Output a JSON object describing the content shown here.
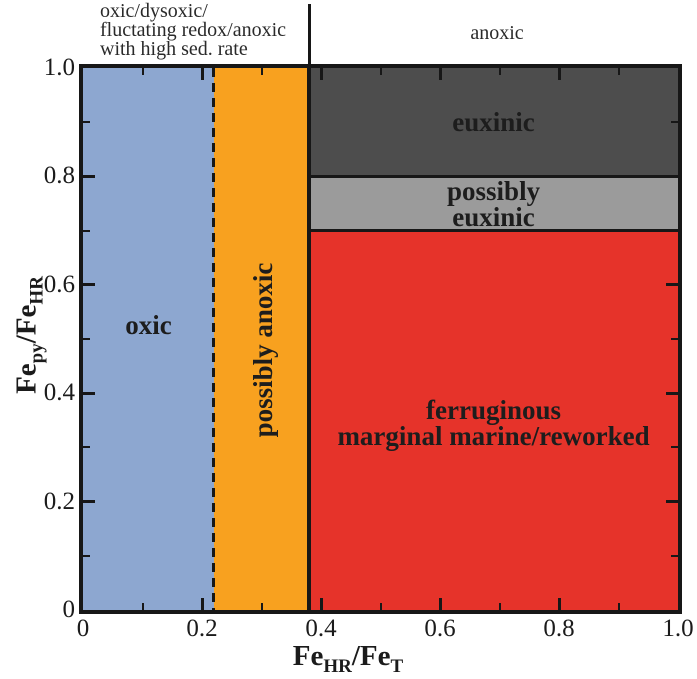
{
  "figure": {
    "name": "iron-speciation-redox-diagram",
    "background": "#ffffff",
    "ink_color": "#171717"
  },
  "annotations": {
    "top_left_lines": [
      "oxic/dysoxic/",
      "fluctating redox/anoxic",
      "with high sed. rate"
    ],
    "top_right_label": "anoxic",
    "separator_x": 0.38
  },
  "chart_data": {
    "type": "area",
    "title": "",
    "x_axis": {
      "label_segments": [
        {
          "t": "Fe"
        },
        {
          "t": "HR",
          "sub": true
        },
        {
          "t": "/Fe"
        },
        {
          "t": "T",
          "sub": true
        }
      ],
      "range": [
        0,
        1
      ],
      "tick_values": [
        0,
        0.2,
        0.4,
        0.6,
        0.8,
        1.0
      ],
      "tick_labels": [
        "0",
        "0.2",
        "0.4",
        "0.6",
        "0.8",
        "1.0"
      ],
      "minor_tick_values": [
        0.1,
        0.3,
        0.5,
        0.7,
        0.9
      ]
    },
    "y_axis": {
      "label_segments": [
        {
          "t": "Fe"
        },
        {
          "t": "py",
          "sub": true
        },
        {
          "t": "/Fe"
        },
        {
          "t": "HR",
          "sub": true
        }
      ],
      "range": [
        0,
        1
      ],
      "tick_values": [
        0,
        0.2,
        0.4,
        0.6,
        0.8,
        1.0
      ],
      "tick_labels": [
        "0",
        "0.2",
        "0.4",
        "0.6",
        "0.8",
        "1.0"
      ],
      "minor_tick_values": [
        0.1,
        0.3,
        0.5,
        0.7,
        0.9
      ]
    },
    "grid": false,
    "regions": [
      {
        "name": "oxic",
        "x": [
          0,
          0.22
        ],
        "y": [
          0,
          1
        ],
        "color": "#8da7d0",
        "label_lines": [
          "oxic"
        ],
        "label_pos": {
          "x": 0.11,
          "y": 0.525
        },
        "label_rotation": 0
      },
      {
        "name": "possibly-anoxic",
        "x": [
          0.22,
          0.38
        ],
        "y": [
          0,
          1
        ],
        "color": "#f8a11f",
        "label_lines": [
          "possibly anoxic"
        ],
        "label_pos": {
          "x": 0.302,
          "y": 0.48
        },
        "label_rotation": -90
      },
      {
        "name": "euxinic",
        "x": [
          0.38,
          1
        ],
        "y": [
          0.8,
          1
        ],
        "color": "#4d4d4d",
        "label_lines": [
          "euxinic"
        ],
        "label_pos": {
          "x": 0.69,
          "y": 0.9
        },
        "label_rotation": 0
      },
      {
        "name": "possibly-euxinic",
        "x": [
          0.38,
          1
        ],
        "y": [
          0.7,
          0.8
        ],
        "color": "#9b9b9b",
        "label_lines": [
          "possibly",
          "euxinic"
        ],
        "label_pos": {
          "x": 0.69,
          "y": 0.75
        },
        "label_rotation": 0
      },
      {
        "name": "ferruginous-marginal-marine-reworked",
        "x": [
          0.38,
          1
        ],
        "y": [
          0,
          0.7
        ],
        "color": "#e6332a",
        "label_lines": [
          "ferruginous",
          "marginal marine/reworked"
        ],
        "label_pos": {
          "x": 0.69,
          "y": 0.345
        },
        "label_rotation": 0
      }
    ],
    "boundary_lines": [
      {
        "name": "oxic-possibly-anoxic-dashed-line",
        "orient": "v",
        "at": 0.22,
        "from": 0,
        "to": 1,
        "style": "dashed",
        "thickness": 3
      },
      {
        "name": "anoxic-boundary-line",
        "orient": "v",
        "at": 0.38,
        "from": 0,
        "to": 1,
        "style": "solid",
        "thickness": 4
      },
      {
        "name": "euxinic-boundary-line",
        "orient": "h",
        "at": 0.8,
        "from": 0.38,
        "to": 1,
        "style": "solid",
        "thickness": 3
      },
      {
        "name": "possibly-euxinic-boundary-line",
        "orient": "h",
        "at": 0.7,
        "from": 0.38,
        "to": 1,
        "style": "solid",
        "thickness": 3
      }
    ]
  }
}
